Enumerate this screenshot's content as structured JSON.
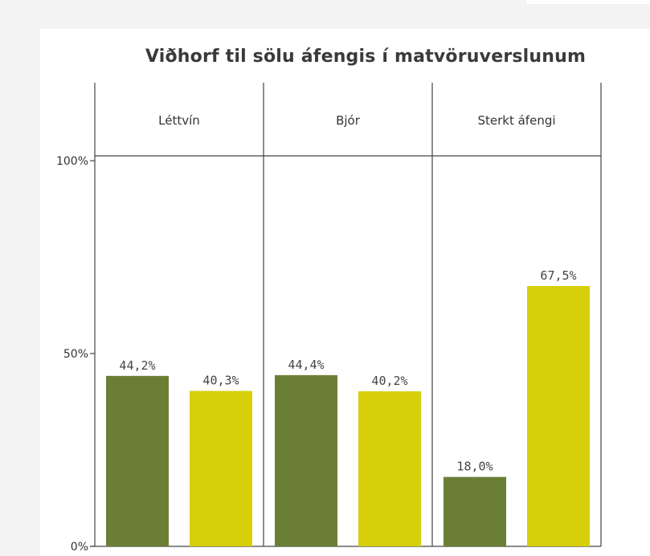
{
  "chart_data": {
    "type": "bar",
    "title": "Viðhorf til sölu áfengis í matvöruverslunum",
    "categories": [
      "Léttvín",
      "Bjór",
      "Sterkt áfengi"
    ],
    "series": [
      {
        "values": [
          44.2,
          44.4,
          18.0
        ],
        "labels": [
          "44,2%",
          "44,4%",
          "18,0%"
        ],
        "color": "#6a7f35"
      },
      {
        "values": [
          40.3,
          40.2,
          67.5
        ],
        "labels": [
          "40,3%",
          "40,2%",
          "67,5%"
        ],
        "color": "#d6cf0a"
      }
    ],
    "y_ticks": [
      {
        "value": 0,
        "label": "0%"
      },
      {
        "value": 50,
        "label": "50%"
      },
      {
        "value": 100,
        "label": "100%"
      }
    ],
    "ylim": [
      0,
      100
    ],
    "grid": false,
    "legend": "none"
  }
}
